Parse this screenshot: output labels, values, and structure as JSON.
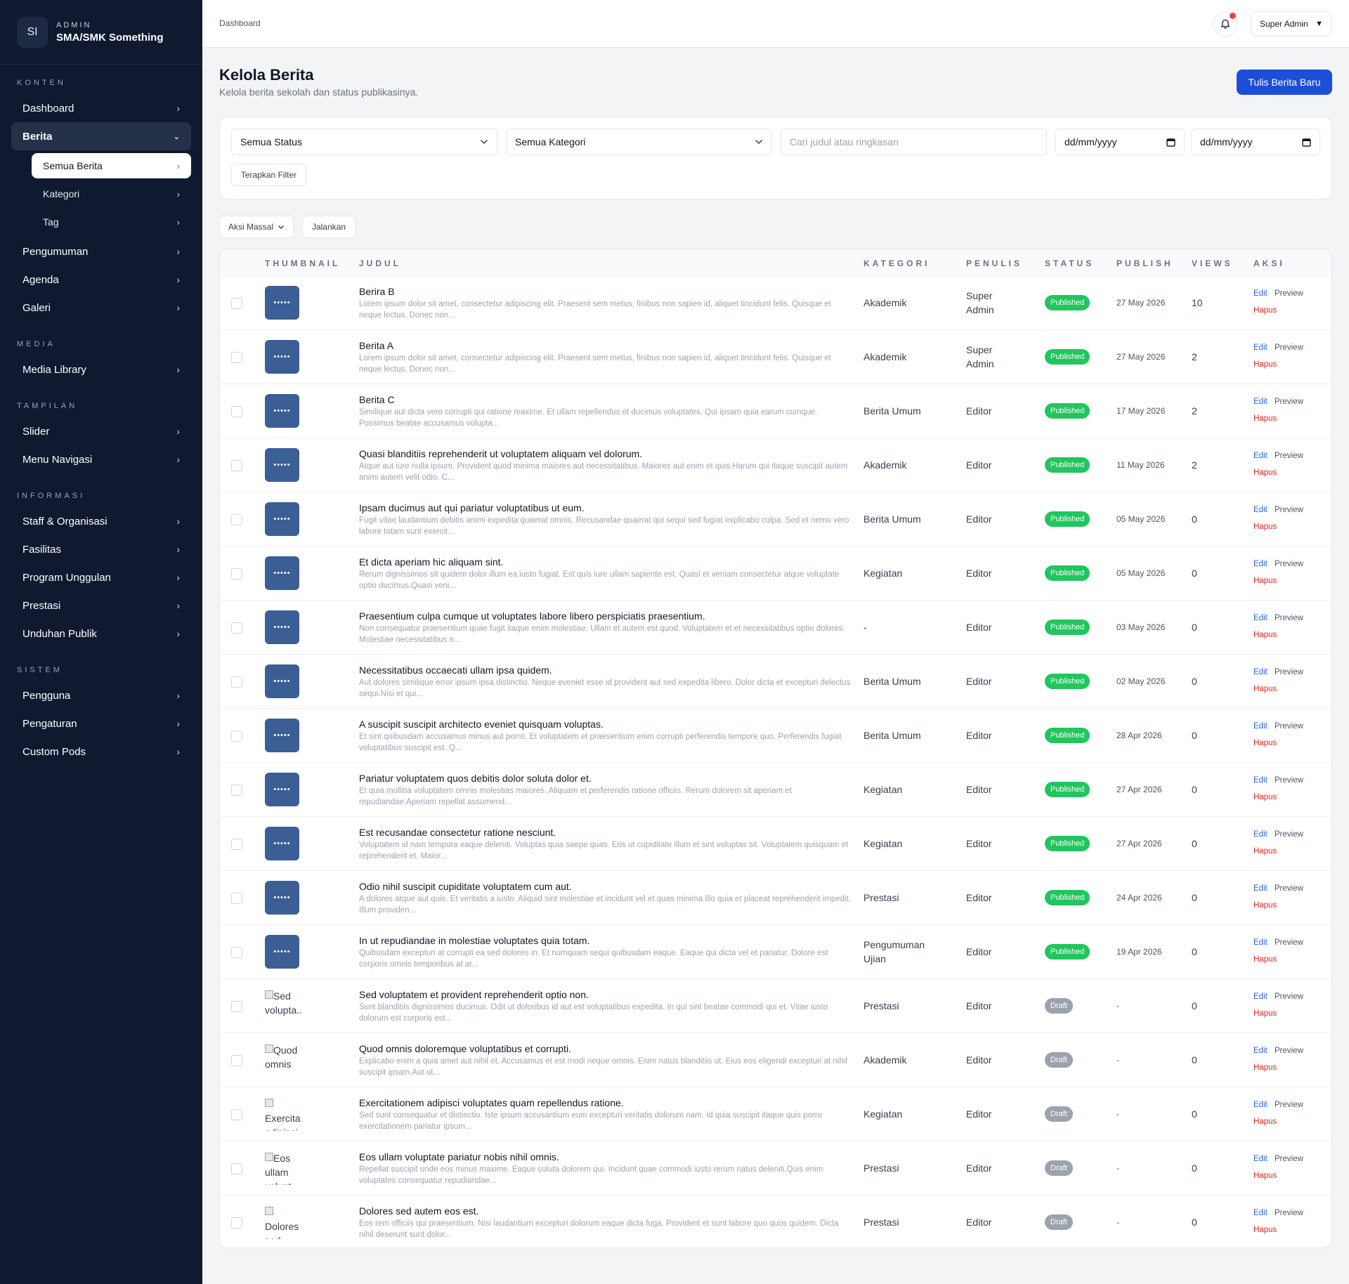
{
  "brand": {
    "logo": "SI",
    "kicker": "ADMIN",
    "name": "SMA/SMK Something"
  },
  "nav": {
    "sections": [
      {
        "label": "KONTEN",
        "items": [
          {
            "label": "Dashboard"
          },
          {
            "label": "Berita",
            "active": true,
            "expanded": true,
            "children": [
              {
                "label": "Semua Berita",
                "active": true
              },
              {
                "label": "Kategori"
              },
              {
                "label": "Tag"
              }
            ]
          },
          {
            "label": "Pengumuman"
          },
          {
            "label": "Agenda"
          },
          {
            "label": "Galeri"
          }
        ]
      },
      {
        "label": "MEDIA",
        "items": [
          {
            "label": "Media Library"
          }
        ]
      },
      {
        "label": "TAMPILAN",
        "items": [
          {
            "label": "Slider"
          },
          {
            "label": "Menu Navigasi"
          }
        ]
      },
      {
        "label": "INFORMASI",
        "items": [
          {
            "label": "Staff & Organisasi"
          },
          {
            "label": "Fasilitas"
          },
          {
            "label": "Program Unggulan"
          },
          {
            "label": "Prestasi"
          },
          {
            "label": "Unduhan Publik"
          }
        ]
      },
      {
        "label": "SISTEM",
        "items": [
          {
            "label": "Pengguna"
          },
          {
            "label": "Pengaturan"
          },
          {
            "label": "Custom Pods"
          }
        ]
      }
    ]
  },
  "topbar": {
    "breadcrumb": "Dashboard",
    "user": "Super Admin",
    "notification_icon": "bell-icon",
    "has_unread": true
  },
  "page": {
    "title": "Kelola Berita",
    "subtitle": "Kelola berita sekolah dan status publikasinya.",
    "new_button": "Tulis Berita Baru"
  },
  "filters": {
    "status": "Semua Status",
    "category": "Semua Kategori",
    "search_placeholder": "Cari judul atau ringkasan",
    "date_from": "dd/mm/yyyy",
    "date_to": "dd/mm/yyyy",
    "apply": "Terapkan Filter"
  },
  "bulk": {
    "select": "Aksi Massal",
    "run": "Jalankan"
  },
  "table": {
    "columns": [
      "THUMBNAIL",
      "JUDUL",
      "KATEGORI",
      "PENULIS",
      "STATUS",
      "PUBLISH",
      "VIEWS",
      "AKSI"
    ],
    "actions": {
      "edit": "Edit",
      "preview": "Preview",
      "delete": "Hapus"
    },
    "rows": [
      {
        "thumb": "•••••",
        "title": "Berira B",
        "excerpt": "Lorem ipsum dolor sit amet, consectetur adipiscing elit. Praesent sem metus, finibus non sapien id, aliquet tincidunt felis. Quisque et neque lectus. Donec non...",
        "category": "Akademik",
        "author": "Super Admin",
        "status": "Published",
        "date": "27 May 2026",
        "views": "10"
      },
      {
        "thumb": "•••••",
        "title": "Berita A",
        "excerpt": "Lorem ipsum dolor sit amet, consectetur adipiscing elit. Praesent sem metus, finibus non sapien id, aliquet tincidunt felis. Quisque et neque lectus. Donec non...",
        "category": "Akademik",
        "author": "Super Admin",
        "status": "Published",
        "date": "27 May 2026",
        "views": "2"
      },
      {
        "thumb": "•••••",
        "title": "Berita C",
        "excerpt": "Similique aut dicta vero corrupti qui ratione maxime. Et ullam repellendus et ducimus voluptates. Qui ipsam quia earum cumque. Possimus beatae accusamus volupta...",
        "category": "Berita Umum",
        "author": "Editor",
        "status": "Published",
        "date": "17 May 2026",
        "views": "2"
      },
      {
        "thumb": "•••••",
        "title": "Quasi blanditiis reprehenderit ut voluptatem aliquam vel dolorum.",
        "excerpt": "Atque aut iure nulla ipsum. Provident quod minima maiores aut necessitatibus. Maiores aut enim et quis.Harum qui itaque suscipit autem animi autem velit odio. C...",
        "category": "Akademik",
        "author": "Editor",
        "status": "Published",
        "date": "11 May 2026",
        "views": "2"
      },
      {
        "thumb": "•••••",
        "title": "Ipsam ducimus aut qui pariatur voluptatibus ut eum.",
        "excerpt": "Fugit vitae laudantium debitis animi expedita quaerat omnis. Recusandae quaerat qui sequi sed fugiat explicabo culpa. Sed et nemo vero labore totam sunt exercit...",
        "category": "Berita Umum",
        "author": "Editor",
        "status": "Published",
        "date": "05 May 2026",
        "views": "0"
      },
      {
        "thumb": "•••••",
        "title": "Et dicta aperiam hic aliquam sint.",
        "excerpt": "Rerum dignissimos sit quidem dolor illum ea iusto fugiat. Est quis iure ullam sapiente est. Quasi et veniam consectetur atque voluptate optio ducimus.Quasi veni...",
        "category": "Kegiatan",
        "author": "Editor",
        "status": "Published",
        "date": "05 May 2026",
        "views": "0"
      },
      {
        "thumb": "•••••",
        "title": "Praesentium culpa cumque ut voluptates labore libero perspiciatis praesentium.",
        "excerpt": "Non consequatur praesentium quae fugit itaque enim molestiae. Ullam et autem est quod. Voluptatem et et necessitatibus optio dolores. Molestiae necessitatibus n...",
        "category": "-",
        "author": "Editor",
        "status": "Published",
        "date": "03 May 2026",
        "views": "0"
      },
      {
        "thumb": "•••••",
        "title": "Necessitatibus occaecati ullam ipsa quidem.",
        "excerpt": "Aut dolores similique error ipsum ipsa distinctio. Neque eveniet esse id provident aut sed expedita libero. Dolor dicta et excepturi delectus sequi.Nisi et qui...",
        "category": "Berita Umum",
        "author": "Editor",
        "status": "Published",
        "date": "02 May 2026",
        "views": "0"
      },
      {
        "thumb": "•••••",
        "title": "A suscipit suscipit architecto eveniet quisquam voluptas.",
        "excerpt": "Et sint quibusdam accusamus minus aut porro. Et voluptatem et praesentium enim corrupti perferendis tempore quo. Perferendis fugiat voluptatibus suscipit est. Q...",
        "category": "Berita Umum",
        "author": "Editor",
        "status": "Published",
        "date": "28 Apr 2026",
        "views": "0"
      },
      {
        "thumb": "•••••",
        "title": "Pariatur voluptatem quos debitis dolor soluta dolor et.",
        "excerpt": "Et quia mollitia voluptatem omnis molestias maiores. Aliquam et perferendis ratione officiis. Rerum dolorem sit aperiam et repudiandae.Aperiam repellat assumend...",
        "category": "Kegiatan",
        "author": "Editor",
        "status": "Published",
        "date": "27 Apr 2026",
        "views": "0"
      },
      {
        "thumb": "•••••",
        "title": "Est recusandae consectetur ratione nesciunt.",
        "excerpt": "Voluptatem id nam tempora eaque deleniti. Voluptas quia saepe quas. Eos ut cupiditate illum et sint voluptas sit. Voluptatem quisquam et reprehenderit et. Maior...",
        "category": "Kegiatan",
        "author": "Editor",
        "status": "Published",
        "date": "27 Apr 2026",
        "views": "0"
      },
      {
        "thumb": "•••••",
        "title": "Odio nihil suscipit cupiditate voluptatem cum aut.",
        "excerpt": "A dolores atque aut quis. Et veritatis a iusto. Aliquid sint molestiae et incidunt vel et quas minima.Illo quia et placeat reprehenderit impedit. Illum providen...",
        "category": "Prestasi",
        "author": "Editor",
        "status": "Published",
        "date": "24 Apr 2026",
        "views": "0"
      },
      {
        "thumb": "•••••",
        "title": "In ut repudiandae in molestiae voluptates quia totam.",
        "excerpt": "Quibusdam excepturi at corrupti ea sed dolores in. Et numquam sequi quibusdam eaque. Eaque qui dicta vel et pariatur. Dolore est corporis omnis temporibus at ar...",
        "category": "Pengumuman Ujian",
        "author": "Editor",
        "status": "Published",
        "date": "19 Apr 2026",
        "views": "0"
      },
      {
        "thumb_alt": "Sed volupta...",
        "title": "Sed voluptatem et provident reprehenderit optio non.",
        "excerpt": "Sunt blanditiis dignissimos ducimus. Odit ut doloribus id aut est voluptatibus expedita. In qui sint beatae commodi qui et. Vitae iusto dolorum est corporis est...",
        "category": "Prestasi",
        "author": "Editor",
        "status": "Draft",
        "date": "-",
        "views": "0"
      },
      {
        "thumb_alt": "Quod omnis",
        "title": "Quod omnis doloremque voluptatibus et corrupti.",
        "excerpt": "Explicabo enim a quia amet aut nihil et. Accusamus et est modi neque omnis. Enim natus blanditiis ut. Eius eos eligendi excepturi at nihil suscipit ipsam.Aut ut...",
        "category": "Akademik",
        "author": "Editor",
        "status": "Draft",
        "date": "-",
        "views": "0"
      },
      {
        "thumb_alt": "Exercita adipisci",
        "title": "Exercitationem adipisci voluptates quam repellendus ratione.",
        "excerpt": "Sed sunt consequatur et distinctio. Iste ipsum accusantium eum excepturi veritatis dolorum nam. Id quia suscipit itaque quis porro exercitationem pariatur ipsum...",
        "category": "Kegiatan",
        "author": "Editor",
        "status": "Draft",
        "date": "-",
        "views": "0"
      },
      {
        "thumb_alt": "Eos ullam volupt",
        "title": "Eos ullam voluptate pariatur nobis nihil omnis.",
        "excerpt": "Repellat suscipit unde eos minus maxime. Eaque soluta dolorem qui. Incidunt quae commodi iusto rerum natus deleniti.Quis enim voluptates consequatur repudiandae...",
        "category": "Prestasi",
        "author": "Editor",
        "status": "Draft",
        "date": "-",
        "views": "0"
      },
      {
        "thumb_alt": "Dolores sed",
        "title": "Dolores sed autem eos est.",
        "excerpt": "Eos rem officiis qui praesentium. Nisi laudantium excepturi dolorum eaque dicta fuga. Provident et sunt labore quo quos quidem. Dicta nihil deserunt sunt dolor...",
        "category": "Prestasi",
        "author": "Editor",
        "status": "Draft",
        "date": "-",
        "views": "0"
      }
    ]
  }
}
